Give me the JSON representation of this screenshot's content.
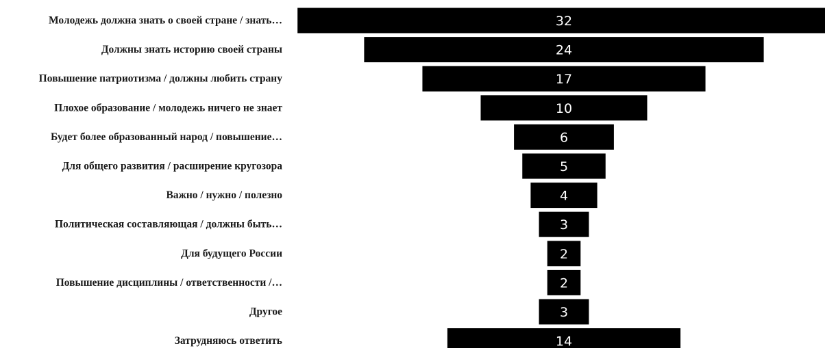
{
  "chart_data": {
    "type": "bar",
    "orientation": "horizontal",
    "layout": "centered-funnel",
    "categories": [
      "Молодежь должна знать о своей стране / знать…",
      "Должны знать историю своей страны",
      "Повышение патриотизма / должны любить страну",
      "Плохое образование / молодежь ничего не знает",
      "Будет более образованный народ / повышение…",
      "Для общего развития / расширение кругозора",
      "Важно / нужно / полезно",
      "Политическая составляющая / должны быть…",
      "Для будущего России",
      "Повышение дисциплины / ответственности /…",
      "Другое",
      "Затрудняюсь ответить"
    ],
    "values": [
      32,
      24,
      17,
      10,
      6,
      5,
      4,
      3,
      2,
      2,
      3,
      14
    ],
    "value_labels": [
      "32",
      "24",
      "17",
      "10",
      "6",
      "5",
      "4",
      "3",
      "2",
      "2",
      "3",
      "14"
    ],
    "bar_color": "#000000",
    "value_label_color": "#ffffff",
    "grid": false
  }
}
